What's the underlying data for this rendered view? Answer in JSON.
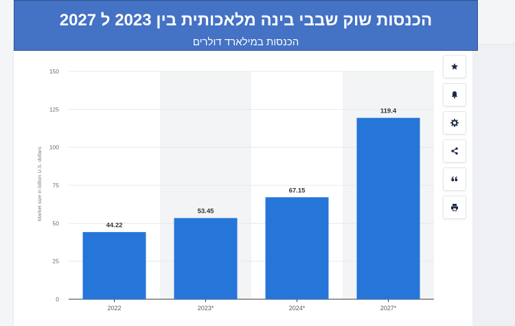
{
  "header": {
    "title": "הכנסות שוק שבבי בינה מלאכותית  בין 2023 ל 2027",
    "subtitle": "הכנסות במילארד דולרים"
  },
  "toolbar": {
    "icons": [
      "star-icon",
      "bell-icon",
      "gear-icon",
      "share-icon",
      "quote-icon",
      "print-icon"
    ]
  },
  "chart_data": {
    "type": "bar",
    "categories": [
      "2022",
      "2023*",
      "2024*",
      "2027*"
    ],
    "values": [
      44.22,
      53.45,
      67.15,
      119.4
    ],
    "value_labels": [
      "44.22",
      "53.45",
      "67.15",
      "119.4"
    ],
    "title": "הכנסות שוק שבבי בינה מלאכותית  בין 2023 ל 2027",
    "subtitle": "הכנסות במילארד דולרים",
    "xlabel": "",
    "ylabel": "Market size in billion U.S. dollars",
    "ylim": [
      0,
      150
    ],
    "yticks": [
      0,
      25,
      50,
      75,
      100,
      125,
      150
    ],
    "grid": true,
    "bar_color": "#2676d9",
    "shaded_columns": [
      1,
      3
    ],
    "shade_color": "#f3f4f6"
  }
}
